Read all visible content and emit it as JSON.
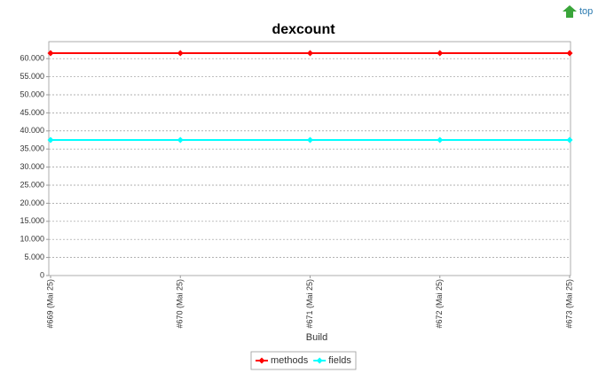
{
  "top_link": "top",
  "chart_data": {
    "type": "line",
    "title": "dexcount",
    "x_label": "Build",
    "categories": [
      "#669 (Mai 25)",
      "#670 (Mai 25)",
      "#671 (Mai 25)",
      "#672 (Mai 25)",
      "#673 (Mai 25)"
    ],
    "series": [
      {
        "name": "methods",
        "color": "#ff0000",
        "values": [
          61500,
          61500,
          61500,
          61500,
          61500
        ]
      },
      {
        "name": "fields",
        "color": "#00ffff",
        "values": [
          37500,
          37500,
          37500,
          37500,
          37500
        ]
      }
    ],
    "ylim": [
      0,
      64700
    ],
    "yticks": [
      0,
      {
        "value": 5000,
        "label": "5.000"
      },
      {
        "value": 10000,
        "label": "10.000"
      },
      {
        "value": 15000,
        "label": "15.000"
      },
      {
        "value": 20000,
        "label": "20.000"
      },
      {
        "value": 25000,
        "label": "25.000"
      },
      {
        "value": 30000,
        "label": "30.000"
      },
      {
        "value": 35000,
        "label": "35.000"
      },
      {
        "value": 40000,
        "label": "40.000"
      },
      {
        "value": 45000,
        "label": "45.000"
      },
      {
        "value": 50000,
        "label": "50.000"
      },
      {
        "value": 55000,
        "label": "55.000"
      },
      {
        "value": 60000,
        "label": "60.000"
      }
    ],
    "grid": true
  }
}
